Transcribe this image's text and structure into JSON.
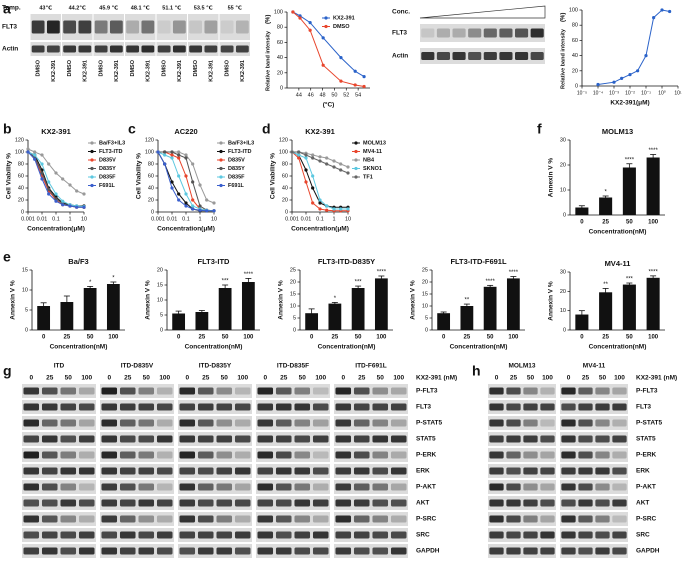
{
  "panel_letters": [
    "a",
    "b",
    "c",
    "d",
    "e",
    "f",
    "g",
    "h"
  ],
  "a_cetsa": {
    "temp_label": "Temp.",
    "temps": [
      "43℃",
      "44.2℃",
      "45.9 ℃",
      "48.1 ℃",
      "51.1 ℃",
      "53.5 ℃",
      "55 ℃"
    ],
    "rows": [
      "FLT3",
      "Actin"
    ],
    "lanes": [
      "DMSO",
      "KX2-391"
    ]
  },
  "a_dose": {
    "conc_label": "Conc.",
    "rows": [
      "FLT3",
      "Actin"
    ]
  },
  "chart_data": [
    {
      "type": "line",
      "ylabel": "Relative band intensity",
      "ylabel_unit": "(%)",
      "xlabel": "(°C)",
      "xscale": "linear",
      "x": [
        43,
        44.2,
        45.9,
        48.1,
        51.1,
        53.5,
        55
      ],
      "xlim": [
        42,
        56
      ],
      "xticks": [
        44,
        46,
        48,
        50,
        52,
        54
      ],
      "ylim": [
        0,
        100
      ],
      "yticks": [
        0,
        20,
        40,
        60,
        80,
        100
      ],
      "series": [
        {
          "name": "KX2-391",
          "color": "#2a62c9",
          "values": [
            100,
            95,
            86,
            66,
            40,
            22,
            15
          ]
        },
        {
          "name": "DMSO",
          "color": "#e8452c",
          "values": [
            100,
            92,
            76,
            30,
            9,
            4,
            2
          ]
        }
      ]
    },
    {
      "type": "line",
      "ylabel": "Relative band intensity",
      "ylabel_unit": "(%)",
      "xlabel": "KX2-391(μM)",
      "xscale": "log",
      "x": [
        0.0001,
        0.001,
        0.003,
        0.01,
        0.03,
        0.1,
        0.3,
        1,
        3
      ],
      "xlim": [
        1e-05,
        10
      ],
      "xticks": [
        {
          "value": 1e-05,
          "label": "10⁻⁵"
        },
        {
          "value": 0.0001,
          "label": "10⁻⁴"
        },
        {
          "value": 0.001,
          "label": "10⁻³"
        },
        {
          "value": 0.01,
          "label": "10⁻²"
        },
        {
          "value": 0.1,
          "label": "10⁻¹"
        },
        {
          "value": 1,
          "label": "10⁰"
        },
        {
          "value": 10,
          "label": "10¹"
        }
      ],
      "ylim": [
        0,
        100
      ],
      "yticks": [
        0,
        20,
        40,
        60,
        80,
        100
      ],
      "series": [
        {
          "color": "#2a62c9",
          "values": [
            2,
            5,
            10,
            15,
            20,
            40,
            90,
            100,
            98
          ]
        }
      ]
    },
    {
      "type": "line",
      "title": "KX2-391",
      "ylabel": "Cell Viability %",
      "xlabel": "Concentration(μM)",
      "xscale": "log",
      "x": [
        0.001,
        0.003,
        0.01,
        0.03,
        0.1,
        0.3,
        1,
        3,
        10
      ],
      "xlim": [
        0.001,
        10
      ],
      "xticks": [
        0.001,
        0.01,
        0.1,
        1,
        10
      ],
      "ylim": [
        0,
        120
      ],
      "yticks": [
        0,
        20,
        40,
        60,
        80,
        100,
        120
      ],
      "series": [
        {
          "name": "Ba/F3+IL3",
          "color": "#999999",
          "values": [
            105,
            100,
            95,
            80,
            65,
            55,
            45,
            35,
            30
          ]
        },
        {
          "name": "FLT3-ITD",
          "color": "#111111",
          "values": [
            100,
            95,
            70,
            40,
            25,
            15,
            12,
            10,
            10
          ]
        },
        {
          "name": "D835V",
          "color": "#e8452c",
          "values": [
            100,
            90,
            60,
            35,
            20,
            12,
            10,
            8,
            8
          ]
        },
        {
          "name": "D835Y",
          "color": "#555555",
          "values": [
            100,
            92,
            65,
            38,
            22,
            14,
            10,
            9,
            8
          ]
        },
        {
          "name": "D835F",
          "color": "#5cc8e0",
          "values": [
            100,
            95,
            80,
            50,
            30,
            18,
            12,
            10,
            9
          ]
        },
        {
          "name": "F691L",
          "color": "#3a5fcd",
          "values": [
            100,
            88,
            55,
            30,
            18,
            12,
            10,
            8,
            8
          ]
        }
      ]
    },
    {
      "type": "line",
      "title": "AC220",
      "ylabel": "Cell Viability %",
      "xlabel": "Concentration(μM)",
      "xscale": "log",
      "x": [
        0.001,
        0.003,
        0.01,
        0.03,
        0.1,
        0.3,
        1,
        3,
        10
      ],
      "xlim": [
        0.001,
        10
      ],
      "xticks": [
        0.001,
        0.01,
        0.1,
        1,
        10
      ],
      "ylim": [
        0,
        120
      ],
      "yticks": [
        0,
        20,
        40,
        60,
        80,
        100,
        120
      ],
      "series": [
        {
          "name": "Ba/F3+IL3",
          "color": "#999999",
          "values": [
            100,
            100,
            100,
            100,
            95,
            80,
            45,
            20,
            15
          ]
        },
        {
          "name": "FLT3-ITD",
          "color": "#111111",
          "values": [
            100,
            80,
            50,
            30,
            15,
            5,
            2,
            2,
            2
          ]
        },
        {
          "name": "D835V",
          "color": "#e8452c",
          "values": [
            100,
            100,
            95,
            90,
            60,
            20,
            5,
            3,
            2
          ]
        },
        {
          "name": "D835Y",
          "color": "#555555",
          "values": [
            100,
            100,
            100,
            95,
            90,
            50,
            10,
            3,
            2
          ]
        },
        {
          "name": "D835F",
          "color": "#5cc8e0",
          "values": [
            100,
            95,
            90,
            60,
            30,
            10,
            5,
            3,
            2
          ]
        },
        {
          "name": "F691L",
          "color": "#3a5fcd",
          "values": [
            100,
            80,
            40,
            20,
            10,
            5,
            3,
            2,
            2
          ]
        }
      ]
    },
    {
      "type": "line",
      "title": "KX2-391",
      "ylabel": "Cell Viability %",
      "xlabel": "Concentration(μM)",
      "xscale": "log",
      "x": [
        0.001,
        0.003,
        0.01,
        0.03,
        0.1,
        0.3,
        1,
        3,
        10
      ],
      "xlim": [
        0.001,
        10
      ],
      "xticks": [
        0.001,
        0.01,
        0.1,
        1,
        10
      ],
      "ylim": [
        0,
        120
      ],
      "yticks": [
        0,
        20,
        40,
        60,
        80,
        100,
        120
      ],
      "series": [
        {
          "name": "MOLM13",
          "color": "#111111",
          "values": [
            100,
            95,
            70,
            40,
            15,
            10,
            8,
            8,
            8
          ]
        },
        {
          "name": "MV4-11",
          "color": "#e8452c",
          "values": [
            100,
            90,
            50,
            15,
            5,
            3,
            2,
            2,
            2
          ]
        },
        {
          "name": "NB4",
          "color": "#999999",
          "values": [
            100,
            100,
            98,
            95,
            92,
            90,
            85,
            80,
            75
          ]
        },
        {
          "name": "SKNO1",
          "color": "#5cc8e0",
          "values": [
            100,
            95,
            90,
            60,
            20,
            10,
            5,
            5,
            5
          ]
        },
        {
          "name": "TF1",
          "color": "#666666",
          "values": [
            100,
            100,
            95,
            90,
            85,
            80,
            75,
            70,
            65
          ]
        }
      ]
    },
    {
      "type": "bar",
      "title": "Ba/F3",
      "ylabel": "Annexin V %",
      "xlabel": "Concentration(nM)",
      "categories": [
        "0",
        "25",
        "50",
        "100"
      ],
      "values": [
        6,
        7,
        10.5,
        11.5
      ],
      "errors": [
        0.8,
        1.5,
        0.4,
        0.5
      ],
      "significance": [
        null,
        null,
        "*",
        "*"
      ],
      "color": "#111111",
      "ylim": [
        0,
        15
      ],
      "yticks": [
        0,
        5,
        10,
        15
      ]
    },
    {
      "type": "bar",
      "title": "FLT3-ITD",
      "ylabel": "Annexin V %",
      "xlabel": "Concentration(nM)",
      "categories": [
        "0",
        "25",
        "50",
        "100"
      ],
      "values": [
        5.5,
        6,
        14,
        16
      ],
      "errors": [
        0.8,
        0.5,
        1,
        1.2
      ],
      "significance": [
        null,
        null,
        "***",
        "****"
      ],
      "color": "#111111",
      "ylim": [
        0,
        20
      ],
      "yticks": [
        0,
        5,
        10,
        15,
        20
      ]
    },
    {
      "type": "bar",
      "title": "FLT3-ITD-D835Y",
      "ylabel": "Annexin V %",
      "xlabel": "Concentration(nM)",
      "categories": [
        "0",
        "25",
        "50",
        "100"
      ],
      "values": [
        7,
        11,
        17.5,
        21.5
      ],
      "errors": [
        1.8,
        0.5,
        0.8,
        1
      ],
      "significance": [
        null,
        "*",
        "***",
        "****"
      ],
      "color": "#111111",
      "ylim": [
        0,
        25
      ],
      "yticks": [
        0,
        5,
        10,
        15,
        20,
        25
      ]
    },
    {
      "type": "bar",
      "title": "FLT3-ITD-F691L",
      "ylabel": "Annexin V %",
      "xlabel": "Concentration(nM)",
      "categories": [
        "0",
        "25",
        "50",
        "100"
      ],
      "values": [
        7,
        10,
        18,
        21.5
      ],
      "errors": [
        0.5,
        0.8,
        0.6,
        0.8
      ],
      "significance": [
        null,
        "**",
        "****",
        "****"
      ],
      "color": "#111111",
      "ylim": [
        0,
        25
      ],
      "yticks": [
        0,
        5,
        10,
        15,
        20,
        25
      ]
    },
    {
      "type": "bar",
      "title": "MOLM13",
      "ylabel": "Annexin V %",
      "xlabel": "Concentration(nM)",
      "categories": [
        "0",
        "25",
        "50",
        "100"
      ],
      "values": [
        3,
        7,
        19,
        23
      ],
      "errors": [
        0.7,
        0.6,
        1.5,
        1.2
      ],
      "significance": [
        null,
        "*",
        "****",
        "****"
      ],
      "color": "#111111",
      "ylim": [
        0,
        30
      ],
      "yticks": [
        0,
        10,
        20,
        30
      ]
    },
    {
      "type": "bar",
      "title": "MV4-11",
      "ylabel": "Annexin V %",
      "xlabel": "Concentration(nM)",
      "categories": [
        "0",
        "25",
        "50",
        "100"
      ],
      "values": [
        8,
        19.5,
        23.5,
        27
      ],
      "errors": [
        2,
        2,
        0.8,
        1
      ],
      "significance": [
        null,
        "**",
        "***",
        "****"
      ],
      "color": "#111111",
      "ylim": [
        0,
        30
      ],
      "yticks": [
        0,
        10,
        20,
        30
      ]
    }
  ],
  "g": {
    "header": "KX2-391 (nM)",
    "lanes": [
      "0",
      "25",
      "50",
      "100"
    ],
    "groups": [
      "ITD",
      "ITD-D835V",
      "ITD-D835Y",
      "ITD-D835F",
      "ITD-F691L"
    ],
    "rows": [
      "P-FLT3",
      "FLT3",
      "P-STAT5",
      "STAT5",
      "P-ERK",
      "ERK",
      "P-AKT",
      "AKT",
      "P-SRC",
      "SRC",
      "GAPDH"
    ]
  },
  "h": {
    "header": "KX2-391 (nM)",
    "lanes": [
      "0",
      "25",
      "50",
      "100"
    ],
    "groups": [
      "MOLM13",
      "MV4-11"
    ],
    "rows": [
      "P-FLT3",
      "FLT3",
      "P-STAT5",
      "STAT5",
      "P-ERK",
      "ERK",
      "P-AKT",
      "AKT",
      "P-SRC",
      "SRC",
      "GAPDH"
    ]
  }
}
